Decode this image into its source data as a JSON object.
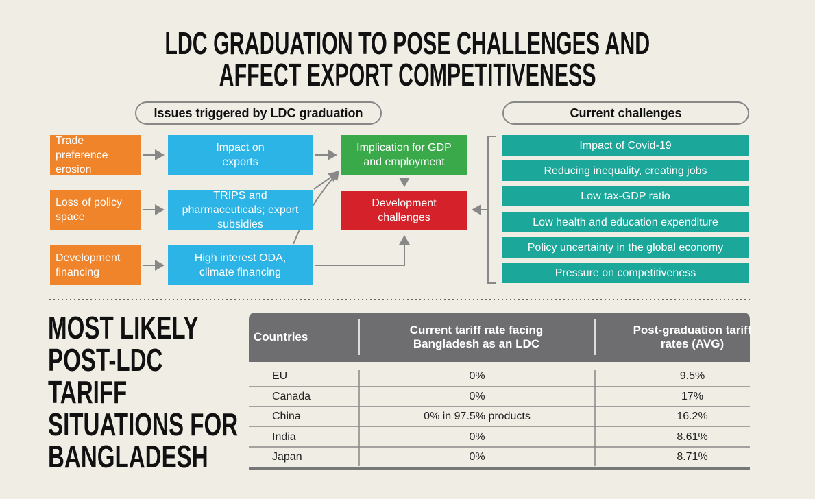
{
  "header": {
    "title_lines": [
      "LDC GRADUATION TO POSE CHALLENGES AND",
      "AFFECT EXPORT COMPETITIVENESS"
    ]
  },
  "diagram": {
    "issues_header": "Issues triggered by LDC graduation",
    "challenges_header": "Current challenges",
    "causes": [
      "Trade preference erosion",
      "Loss of policy space",
      "Development financing"
    ],
    "impacts": [
      "Impact on exports",
      "TRIPS and pharmaceuticals; export subsidies",
      "High interest ODA, climate financing"
    ],
    "implication": "Implication for GDP and employment",
    "outcome": "Development challenges",
    "challenges": [
      "Impact of Covid-19",
      "Reducing inequality, creating jobs",
      "Low tax-GDP ratio",
      "Low health and education expenditure",
      "Policy uncertainty in the global economy",
      "Pressure on competitiveness"
    ]
  },
  "table": {
    "title_lines": [
      "MOST LIKELY",
      "POST-LDC",
      "TARIFF",
      "SITUATIONS FOR",
      "BANGLADESH"
    ],
    "columns": [
      "Countries",
      "Current tariff rate facing Bangladesh as an LDC",
      "Post-graduation tariff rates (AVG)"
    ],
    "rows": [
      [
        "EU",
        "0%",
        "9.5%"
      ],
      [
        "Canada",
        "0%",
        "17%"
      ],
      [
        "China",
        "0% in 97.5% products",
        "16.2%"
      ],
      [
        "India",
        "0%",
        "8.61%"
      ],
      [
        "Japan",
        "0%",
        "8.71%"
      ]
    ]
  }
}
